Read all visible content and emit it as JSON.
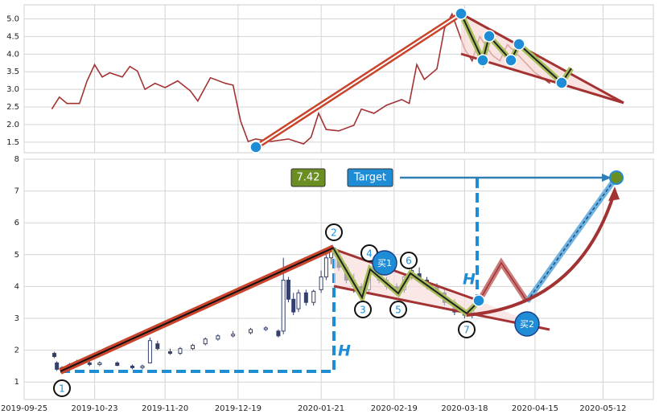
{
  "chart_data": [
    {
      "type": "line",
      "color": "#a33232",
      "x": [
        "2019-10-06",
        "2019-10-09",
        "2019-10-12",
        "2019-10-17",
        "2019-10-20",
        "2019-10-23",
        "2019-10-26",
        "2019-10-29",
        "2019-11-03",
        "2019-11-06",
        "2019-11-09",
        "2019-11-12",
        "2019-11-16",
        "2019-11-20",
        "2019-11-25",
        "2019-11-30",
        "2019-12-03",
        "2019-12-08",
        "2019-12-14",
        "2019-12-17",
        "2019-12-20",
        "2019-12-23",
        "2019-12-26",
        "2020-01-01",
        "2020-01-08",
        "2020-01-14",
        "2020-01-17",
        "2020-01-20",
        "2020-01-23",
        "2020-01-28",
        "2020-02-03",
        "2020-02-06",
        "2020-02-11",
        "2020-02-16",
        "2020-02-22",
        "2020-02-25",
        "2020-02-28",
        "2020-03-02",
        "2020-03-07",
        "2020-03-10",
        "2020-03-13",
        "2020-03-18",
        "2020-03-21",
        "2020-03-24",
        "2020-03-29",
        "2020-04-01",
        "2020-04-04",
        "2020-04-09",
        "2020-04-15",
        "2020-04-21"
      ],
      "values": [
        2.44,
        2.78,
        2.6,
        2.6,
        3.24,
        3.7,
        3.35,
        3.47,
        3.35,
        3.65,
        3.52,
        3.0,
        3.17,
        3.05,
        3.24,
        2.96,
        2.67,
        3.33,
        3.17,
        3.12,
        2.1,
        1.52,
        1.59,
        1.52,
        1.59,
        1.45,
        1.64,
        2.32,
        1.86,
        1.82,
        1.98,
        2.44,
        2.32,
        2.55,
        2.71,
        2.6,
        3.7,
        3.28,
        3.58,
        4.73,
        5.14,
        4.15,
        3.81,
        4.5,
        3.97,
        3.81,
        4.27,
        3.92,
        3.47,
        3.17
      ],
      "ylim": [
        1.2,
        5.4
      ],
      "yticks": [
        1.5,
        {
          "value": 2,
          "label": "2.0"
        },
        2.5,
        {
          "value": 3,
          "label": "3.0"
        },
        3.5,
        {
          "value": 4,
          "label": "4.0"
        },
        4.5,
        {
          "value": 5,
          "label": "5.0"
        }
      ],
      "grid": true
    },
    {
      "type": "candlestick",
      "color": "#34406b",
      "x": [
        "2019-10-07",
        "2019-10-08",
        "2019-10-10",
        "2019-10-13",
        "2019-10-16",
        "2019-10-21",
        "2019-10-25",
        "2019-11-01",
        "2019-11-07",
        "2019-11-11",
        "2019-11-14",
        "2019-11-17",
        "2019-11-22",
        "2019-11-26",
        "2019-12-01",
        "2019-12-06",
        "2019-12-11",
        "2019-12-17",
        "2019-12-24",
        "2019-12-30",
        "2020-01-04",
        "2020-01-06",
        "2020-01-08",
        "2020-01-10",
        "2020-01-12",
        "2020-01-15",
        "2020-01-18",
        "2020-01-21",
        "2020-01-23",
        "2020-01-25",
        "2020-01-28",
        "2020-01-31",
        "2020-02-03",
        "2020-02-06",
        "2020-02-09",
        "2020-02-13",
        "2020-02-16",
        "2020-02-20",
        "2020-02-23",
        "2020-02-26",
        "2020-02-29",
        "2020-03-03",
        "2020-03-07",
        "2020-03-10",
        "2020-03-14",
        "2020-03-18",
        "2020-03-21"
      ],
      "open": [
        1.9,
        1.6,
        1.4,
        1.5,
        1.55,
        1.6,
        1.55,
        1.6,
        1.5,
        1.45,
        1.6,
        2.2,
        1.95,
        1.9,
        2.05,
        2.2,
        2.35,
        2.45,
        2.55,
        2.65,
        2.6,
        2.6,
        4.2,
        3.6,
        3.3,
        3.8,
        3.5,
        3.9,
        4.3,
        4.9,
        5.0,
        4.6,
        4.2,
        4.0,
        3.9,
        4.4,
        4.2,
        4.0,
        3.9,
        4.3,
        4.4,
        4.2,
        4.0,
        3.8,
        3.5,
        3.2,
        3.1
      ],
      "high": [
        1.95,
        1.65,
        1.5,
        1.6,
        1.7,
        1.7,
        1.65,
        1.65,
        1.55,
        1.55,
        2.4,
        2.3,
        2.05,
        2.1,
        2.2,
        2.4,
        2.5,
        2.6,
        2.7,
        2.75,
        2.65,
        4.9,
        4.3,
        3.8,
        3.9,
        3.9,
        3.9,
        4.5,
        5.0,
        5.3,
        5.1,
        4.7,
        4.4,
        4.1,
        4.6,
        4.5,
        4.3,
        4.1,
        4.4,
        4.9,
        4.6,
        4.3,
        4.1,
        3.9,
        3.6,
        3.3,
        3.4
      ],
      "low": [
        1.75,
        1.35,
        1.3,
        1.45,
        1.5,
        1.5,
        1.5,
        1.5,
        1.4,
        1.4,
        1.6,
        2.0,
        1.85,
        1.85,
        2.0,
        2.15,
        2.3,
        2.4,
        2.5,
        2.6,
        2.4,
        2.5,
        3.5,
        3.1,
        3.2,
        3.4,
        3.4,
        3.8,
        4.2,
        4.7,
        4.5,
        4.1,
        3.8,
        3.6,
        3.8,
        4.1,
        3.9,
        3.7,
        3.8,
        4.2,
        4.1,
        3.9,
        3.7,
        3.4,
        3.1,
        3.0,
        3.0
      ],
      "close": [
        1.8,
        1.4,
        1.45,
        1.55,
        1.65,
        1.55,
        1.6,
        1.52,
        1.45,
        1.5,
        2.3,
        2.05,
        1.9,
        2.05,
        2.15,
        2.35,
        2.45,
        2.5,
        2.65,
        2.7,
        2.45,
        4.2,
        3.6,
        3.2,
        3.8,
        3.5,
        3.85,
        4.3,
        4.9,
        5.2,
        4.6,
        4.2,
        4.0,
        3.8,
        4.4,
        4.2,
        4.0,
        3.8,
        4.3,
        4.5,
        4.2,
        4.0,
        3.8,
        3.5,
        3.2,
        3.1,
        3.3
      ],
      "ylim": [
        0.45,
        8
      ],
      "yticks": [
        1,
        2,
        3,
        4,
        5,
        6,
        7,
        8
      ],
      "xlim": [
        "2019-09-25",
        "2020-06-01"
      ],
      "xticks": [
        "2019-09-25",
        "2019-10-23",
        "2019-11-20",
        "2019-12-19",
        "2020-01-21",
        "2020-02-19",
        "2020-03-18",
        "2020-04-15",
        "2020-05-12"
      ],
      "grid": true,
      "annotations": {
        "target_value": "7.42",
        "target": "Target",
        "h": "H",
        "points": [
          "1",
          "2",
          "3",
          "4",
          "5",
          "6",
          "7"
        ],
        "buy1": "买1",
        "buy2": "买2"
      }
    }
  ]
}
